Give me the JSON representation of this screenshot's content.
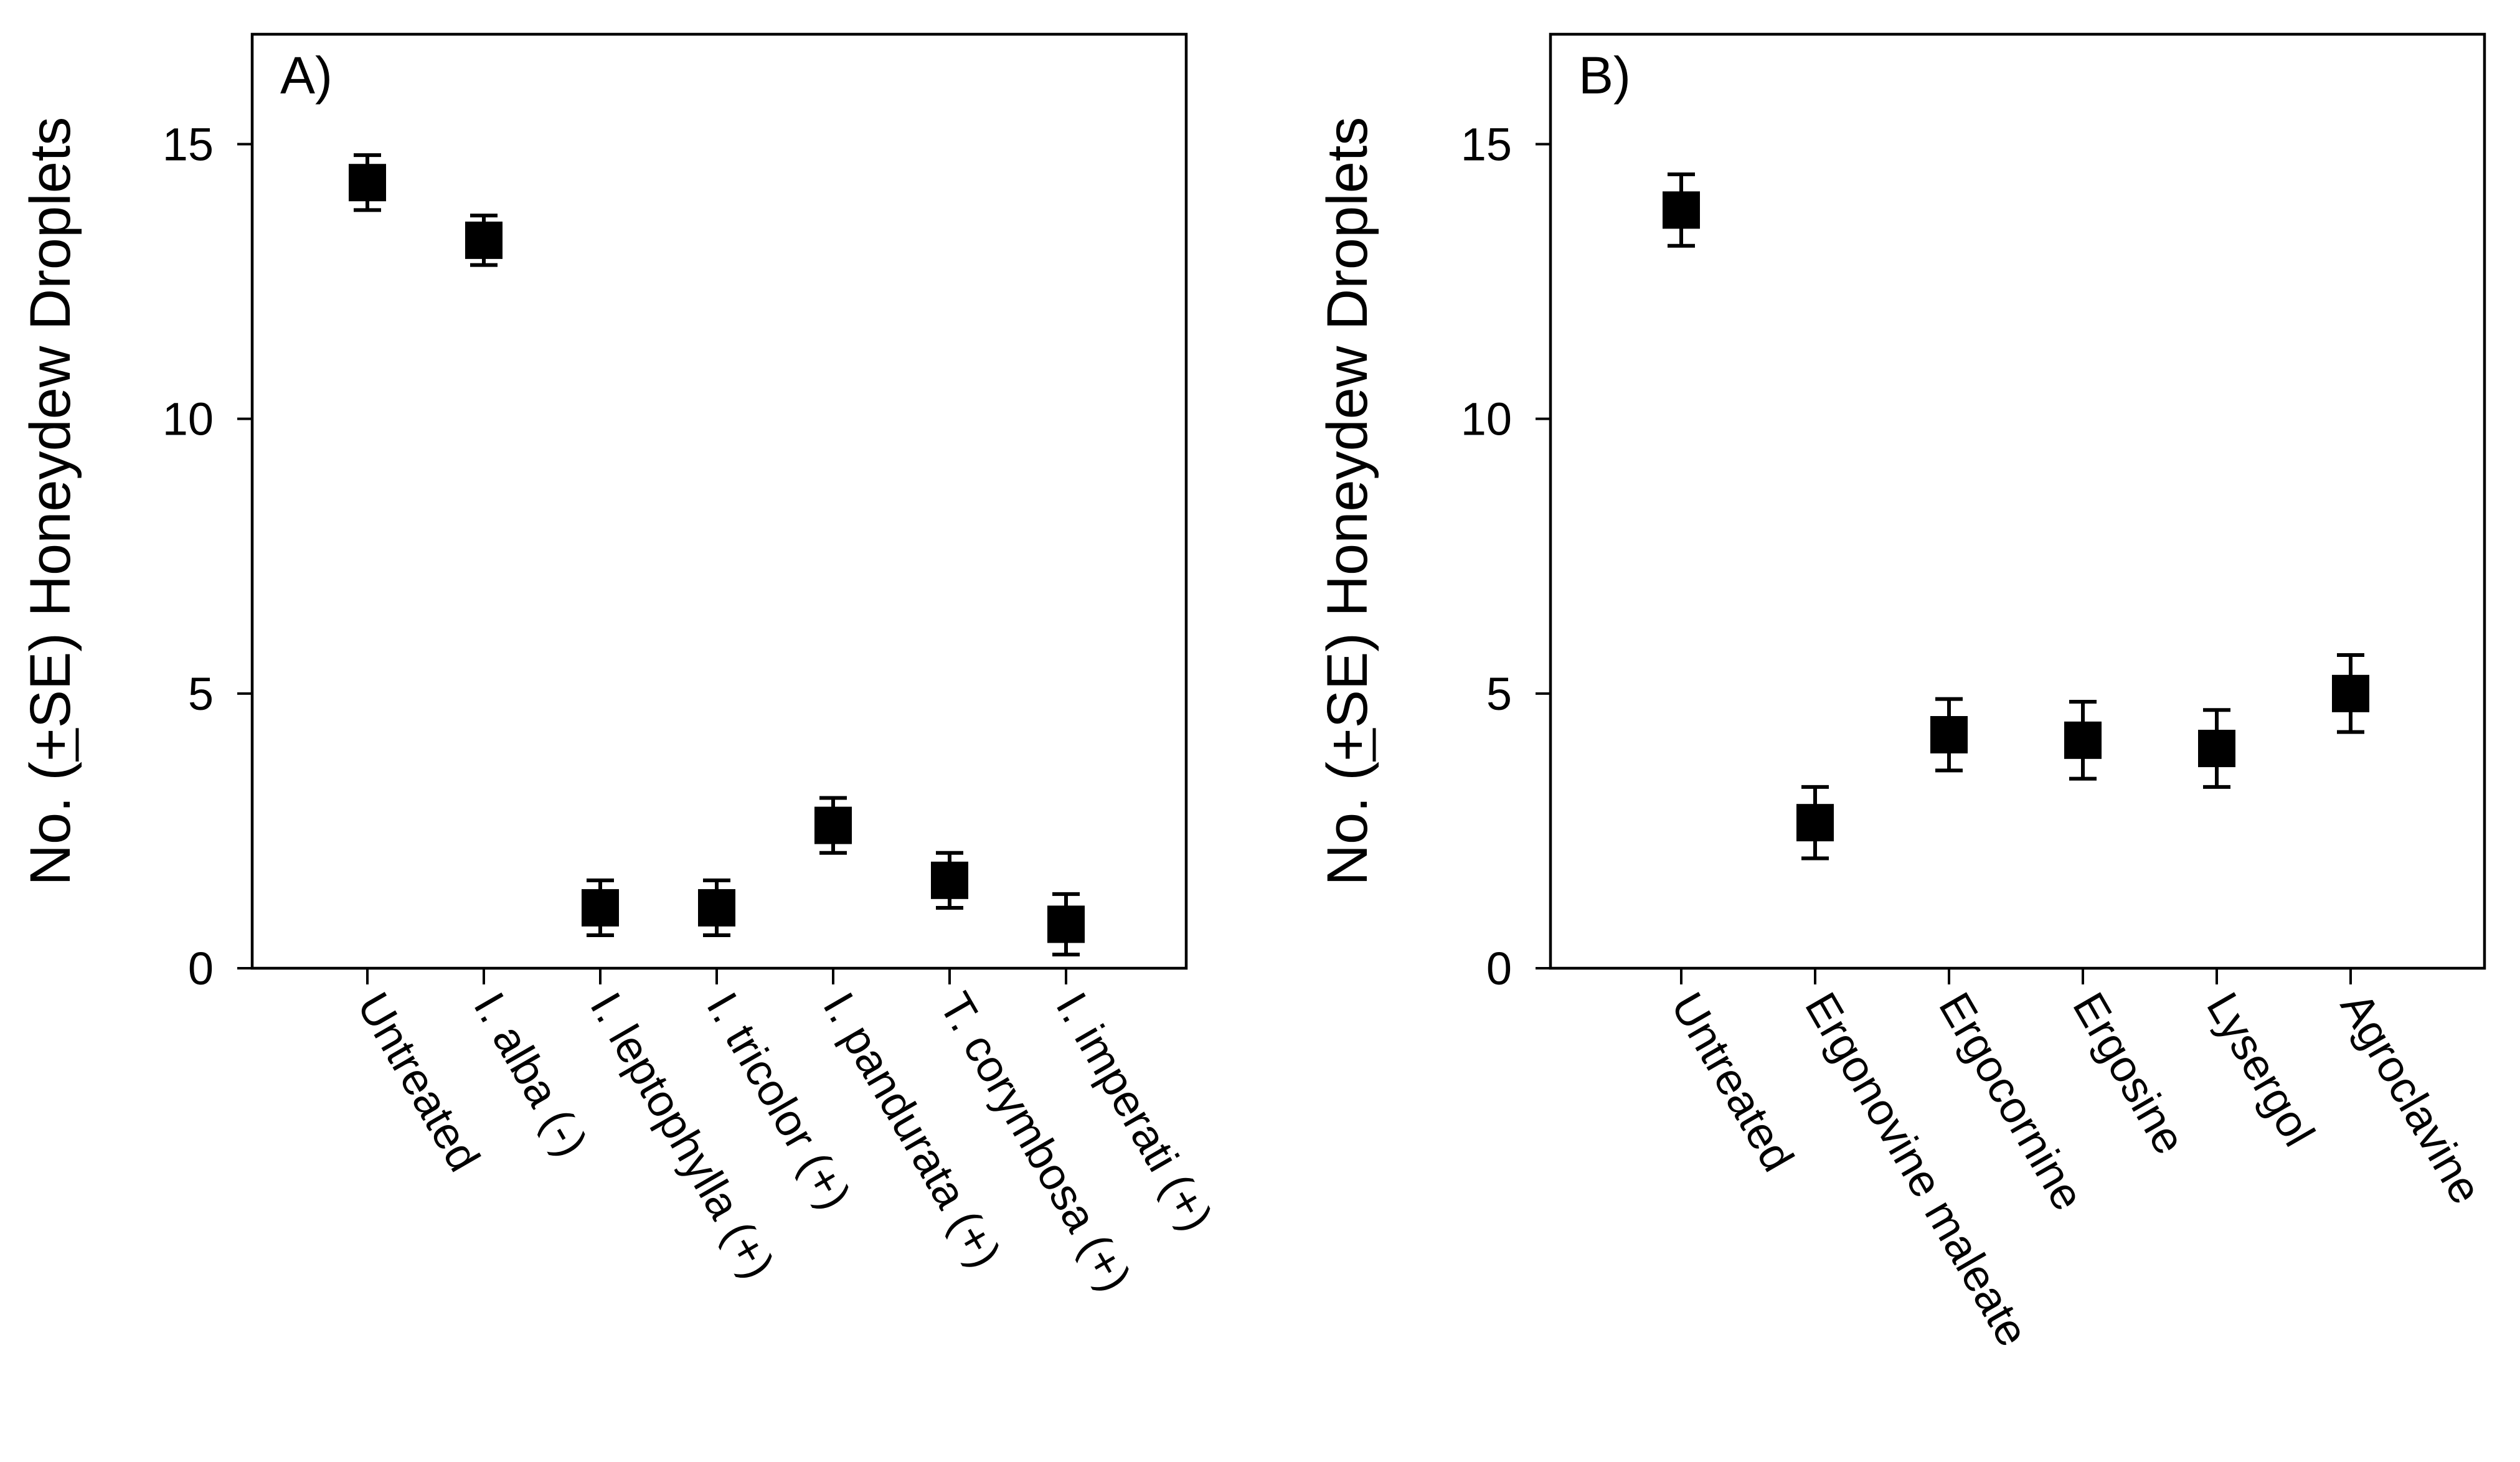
{
  "chart_data": [
    {
      "type": "scatter",
      "panel_label": "A)",
      "title": "",
      "xlabel": "",
      "ylabel": "No. (+SE) Honeydew Droplets",
      "ylim": [
        0,
        17
      ],
      "yticks": [
        0,
        5,
        10,
        15
      ],
      "grid": false,
      "categories": [
        "Untreated",
        "I. alba (-)",
        "I. leptophylla (+)",
        "I. tricolor (+)",
        "I. pandurata (+)",
        "T. corymbosa (+)",
        "I. imperati (+)"
      ],
      "values": [
        14.3,
        13.25,
        1.1,
        1.1,
        2.6,
        1.6,
        0.8
      ],
      "errors": [
        0.5,
        0.45,
        0.5,
        0.5,
        0.5,
        0.5,
        0.55
      ]
    },
    {
      "type": "scatter",
      "panel_label": "B)",
      "title": "",
      "xlabel": "",
      "ylabel": "No. (+SE) Honeydew Droplets",
      "ylim": [
        0,
        17
      ],
      "yticks": [
        0,
        5,
        10,
        15
      ],
      "grid": false,
      "categories": [
        "Untreated",
        "Ergonovine maleate",
        "Ergocornine",
        "Ergosine",
        "Lysergol",
        "Agroclavine"
      ],
      "values": [
        13.8,
        2.65,
        4.25,
        4.15,
        4.0,
        5.0
      ],
      "errors": [
        0.65,
        0.65,
        0.65,
        0.7,
        0.7,
        0.7
      ]
    }
  ]
}
